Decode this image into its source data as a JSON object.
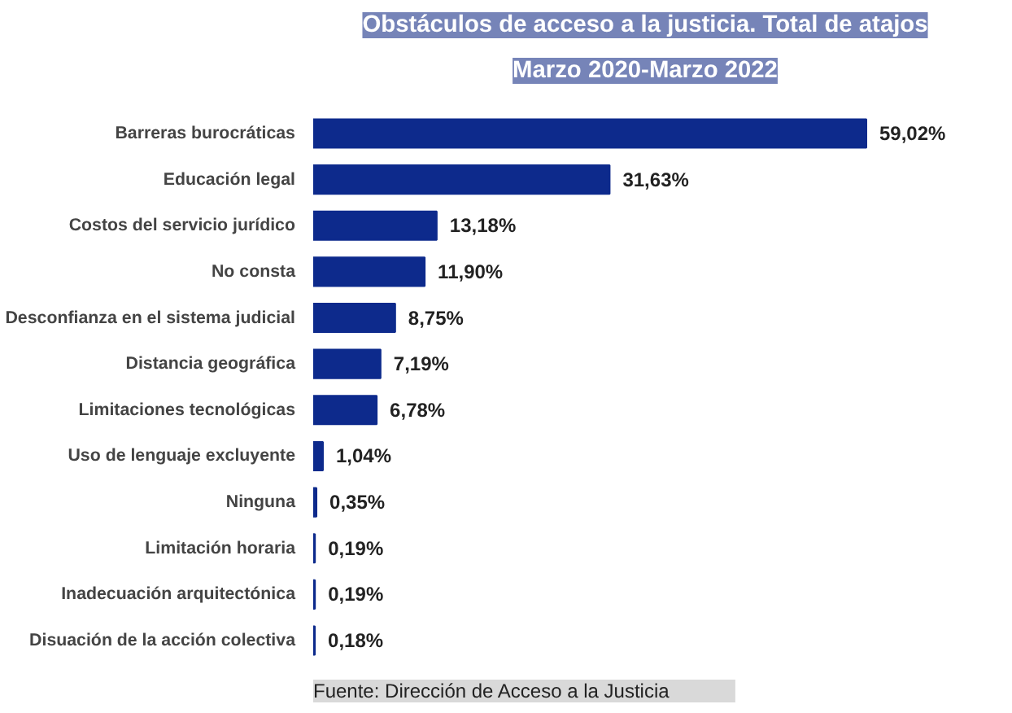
{
  "chart_data": {
    "type": "bar",
    "orientation": "horizontal",
    "title": "Obstáculos de acceso a la justicia. Total de atajos",
    "subtitle": "Marzo 2020-Marzo 2022",
    "categories": [
      "Barreras burocráticas",
      "Educación legal",
      "Costos del servicio jurídico",
      "No consta",
      "Desconfianza en el sistema judicial",
      "Distancia geográfica",
      "Limitaciones tecnológicas",
      "Uso de lenguaje excluyente",
      "Ninguna",
      "Limitación horaria",
      "Inadecuación arquitectónica",
      "Disuación de la acción colectiva"
    ],
    "values": [
      59.02,
      31.63,
      13.18,
      11.9,
      8.75,
      7.19,
      6.78,
      1.04,
      0.35,
      0.19,
      0.19,
      0.18
    ],
    "value_labels": [
      "59,02%",
      "31,63%",
      "13,18%",
      "11,90%",
      "8,75%",
      "7,19%",
      "6,78%",
      "1,04%",
      "0,35%",
      "0,19%",
      "0,19%",
      "0,18%"
    ],
    "color": "#0d2a8c",
    "grid": false,
    "annotations": [
      "Fuente: Dirección de Acceso a la Justicia"
    ]
  }
}
